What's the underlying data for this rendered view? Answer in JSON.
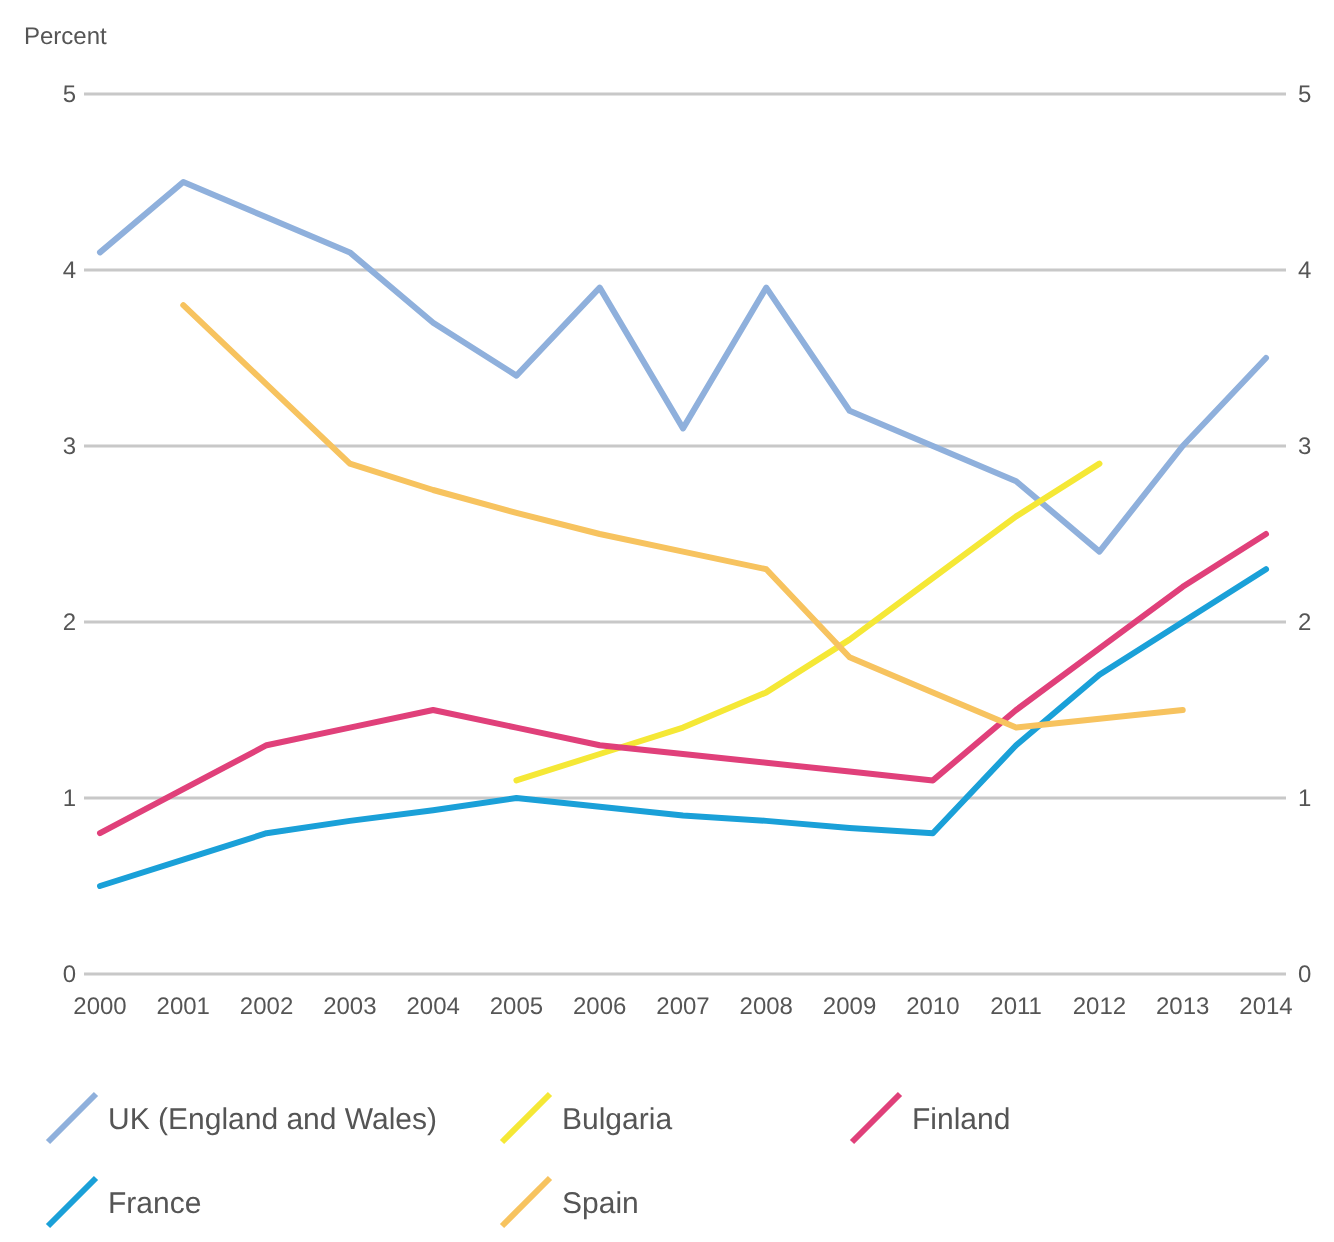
{
  "chart_data": {
    "type": "line",
    "ylabel": "Percent",
    "categories": [
      "2000",
      "2001",
      "2002",
      "2003",
      "2004",
      "2005",
      "2006",
      "2007",
      "2008",
      "2009",
      "2010",
      "2011",
      "2012",
      "2013",
      "2014"
    ],
    "series": [
      {
        "name": "UK (England and Wales)",
        "color": "#8fb0dc",
        "values": [
          4.1,
          4.5,
          4.3,
          4.1,
          3.7,
          3.4,
          3.9,
          3.1,
          3.9,
          3.2,
          3.0,
          2.8,
          2.4,
          3.0,
          3.5
        ]
      },
      {
        "name": "Bulgaria",
        "color": "#f5e836",
        "values": [
          null,
          null,
          null,
          null,
          null,
          1.1,
          1.25,
          1.4,
          1.6,
          1.9,
          2.25,
          2.6,
          2.9,
          null,
          null
        ]
      },
      {
        "name": "Finland",
        "color": "#e0407a",
        "values": [
          0.8,
          1.05,
          1.3,
          1.4,
          1.5,
          1.4,
          1.3,
          1.25,
          1.2,
          1.15,
          1.1,
          1.5,
          1.85,
          2.2,
          2.5
        ]
      },
      {
        "name": "France",
        "color": "#1aa0d8",
        "values": [
          0.5,
          0.65,
          0.8,
          0.87,
          0.93,
          1.0,
          0.95,
          0.9,
          0.87,
          0.83,
          0.8,
          1.3,
          1.7,
          2.0,
          2.3
        ]
      },
      {
        "name": "Spain",
        "color": "#f7c35f",
        "values": [
          null,
          3.8,
          3.35,
          2.9,
          2.75,
          2.62,
          2.5,
          2.4,
          2.3,
          1.8,
          1.6,
          1.4,
          1.45,
          1.5,
          null
        ]
      }
    ],
    "ylim": [
      0,
      5
    ],
    "yticks": [
      0,
      1,
      2,
      3,
      4,
      5
    ],
    "y2lim": [
      0,
      5
    ],
    "y2ticks": [
      0,
      1,
      2,
      3,
      4,
      5
    ],
    "grid": "y",
    "legend": "bottom",
    "marker": "none",
    "line_style": "solid"
  }
}
